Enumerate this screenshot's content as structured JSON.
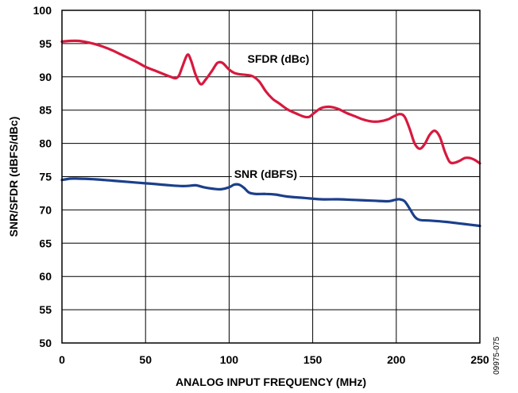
{
  "chart_data": {
    "type": "line",
    "xlabel": "ANALOG INPUT FREQUENCY (MHz)",
    "ylabel": "SNR/SFDR (dBFS/dBc)",
    "xlim": [
      0,
      250
    ],
    "ylim": [
      50,
      100
    ],
    "xticks": [
      0,
      50,
      100,
      150,
      200,
      250
    ],
    "yticks": [
      50,
      55,
      60,
      65,
      70,
      75,
      80,
      85,
      90,
      95,
      100
    ],
    "grid": true,
    "figure_id": "09975-075",
    "series": [
      {
        "name": "SFDR (dBc)",
        "color": "#d7193f",
        "label_at": [
          111,
          92.1
        ],
        "points": [
          [
            0,
            95.3
          ],
          [
            5,
            95.4
          ],
          [
            10,
            95.4
          ],
          [
            15,
            95.2
          ],
          [
            20,
            94.9
          ],
          [
            25,
            94.5
          ],
          [
            30,
            94.0
          ],
          [
            35,
            93.4
          ],
          [
            40,
            92.8
          ],
          [
            45,
            92.2
          ],
          [
            50,
            91.5
          ],
          [
            55,
            91.0
          ],
          [
            60,
            90.5
          ],
          [
            65,
            90.0
          ],
          [
            68,
            89.8
          ],
          [
            70,
            90.2
          ],
          [
            72,
            91.5
          ],
          [
            75,
            93.3
          ],
          [
            77,
            92.6
          ],
          [
            80,
            90.3
          ],
          [
            83,
            88.9
          ],
          [
            86,
            89.6
          ],
          [
            90,
            91.0
          ],
          [
            93,
            92.1
          ],
          [
            96,
            92.1
          ],
          [
            100,
            91.1
          ],
          [
            103,
            90.6
          ],
          [
            106,
            90.4
          ],
          [
            110,
            90.3
          ],
          [
            114,
            90.1
          ],
          [
            118,
            89.3
          ],
          [
            122,
            87.8
          ],
          [
            126,
            86.7
          ],
          [
            130,
            86.0
          ],
          [
            135,
            85.1
          ],
          [
            140,
            84.5
          ],
          [
            145,
            84.0
          ],
          [
            148,
            84.0
          ],
          [
            151,
            84.6
          ],
          [
            155,
            85.3
          ],
          [
            160,
            85.5
          ],
          [
            165,
            85.2
          ],
          [
            170,
            84.6
          ],
          [
            175,
            84.1
          ],
          [
            180,
            83.6
          ],
          [
            185,
            83.3
          ],
          [
            190,
            83.3
          ],
          [
            195,
            83.6
          ],
          [
            198,
            84.0
          ],
          [
            202,
            84.4
          ],
          [
            205,
            84.0
          ],
          [
            208,
            82.2
          ],
          [
            211,
            80.0
          ],
          [
            214,
            79.2
          ],
          [
            217,
            79.9
          ],
          [
            220,
            81.3
          ],
          [
            223,
            81.9
          ],
          [
            226,
            81.0
          ],
          [
            229,
            78.8
          ],
          [
            232,
            77.2
          ],
          [
            235,
            77.1
          ],
          [
            238,
            77.4
          ],
          [
            241,
            77.8
          ],
          [
            244,
            77.8
          ],
          [
            247,
            77.5
          ],
          [
            250,
            77.0
          ]
        ]
      },
      {
        "name": "SNR (dBFS)",
        "color": "#1b3f8b",
        "label_at": [
          103,
          74.8
        ],
        "points": [
          [
            0,
            74.5
          ],
          [
            5,
            74.7
          ],
          [
            10,
            74.7
          ],
          [
            20,
            74.6
          ],
          [
            30,
            74.4
          ],
          [
            40,
            74.2
          ],
          [
            50,
            74.0
          ],
          [
            60,
            73.8
          ],
          [
            70,
            73.6
          ],
          [
            75,
            73.6
          ],
          [
            80,
            73.7
          ],
          [
            85,
            73.4
          ],
          [
            90,
            73.2
          ],
          [
            95,
            73.1
          ],
          [
            100,
            73.4
          ],
          [
            103,
            73.8
          ],
          [
            106,
            73.8
          ],
          [
            109,
            73.3
          ],
          [
            112,
            72.6
          ],
          [
            116,
            72.4
          ],
          [
            122,
            72.4
          ],
          [
            128,
            72.3
          ],
          [
            135,
            72.0
          ],
          [
            145,
            71.8
          ],
          [
            155,
            71.6
          ],
          [
            165,
            71.6
          ],
          [
            175,
            71.5
          ],
          [
            185,
            71.4
          ],
          [
            195,
            71.3
          ],
          [
            199,
            71.5
          ],
          [
            202,
            71.6
          ],
          [
            205,
            71.3
          ],
          [
            208,
            70.2
          ],
          [
            211,
            69.0
          ],
          [
            214,
            68.5
          ],
          [
            220,
            68.4
          ],
          [
            230,
            68.2
          ],
          [
            240,
            67.9
          ],
          [
            250,
            67.6
          ]
        ]
      }
    ]
  }
}
